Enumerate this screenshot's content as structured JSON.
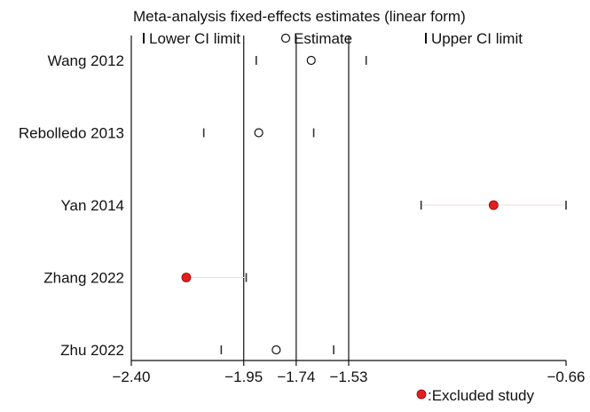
{
  "chart_data": {
    "type": "scatter",
    "title": "Meta-analysis fixed-effects estimates (linear form)",
    "legend": {
      "items": [
        {
          "symbol": "tick",
          "label": "Lower CI limit"
        },
        {
          "symbol": "open-circle",
          "label": "Estimate"
        },
        {
          "symbol": "tick",
          "label": "Upper CI limit"
        }
      ],
      "placement": "top"
    },
    "xlim": [
      -2.4,
      -0.66
    ],
    "x_ticks": [
      {
        "value": -2.4,
        "label": "−2.40"
      },
      {
        "value": -1.95,
        "label": "−1.95"
      },
      {
        "value": -1.74,
        "label": "−1.74"
      },
      {
        "value": -1.53,
        "label": "−1.53"
      },
      {
        "value": -0.66,
        "label": "−0.66"
      }
    ],
    "reference_lines": [
      -1.95,
      -1.74,
      -1.53
    ],
    "studies": [
      {
        "name": "Wang 2012",
        "lower": -1.9,
        "estimate": -1.68,
        "upper": -1.46,
        "excluded": false
      },
      {
        "name": "Rebolledo 2013",
        "lower": -2.11,
        "estimate": -1.89,
        "upper": -1.67,
        "excluded": false
      },
      {
        "name": "Yan 2014",
        "lower": -1.24,
        "estimate": -0.95,
        "upper": -0.66,
        "excluded": true
      },
      {
        "name": "Zhang 2022",
        "lower": null,
        "estimate": -2.18,
        "upper": -1.94,
        "excluded": true
      },
      {
        "name": "Zhu 2022",
        "lower": -2.04,
        "estimate": -1.82,
        "upper": -1.59,
        "excluded": false
      }
    ],
    "grid": false
  },
  "footnote": ":Excluded study",
  "colors": {
    "excluded": "#e02020",
    "axis": "#111111"
  }
}
